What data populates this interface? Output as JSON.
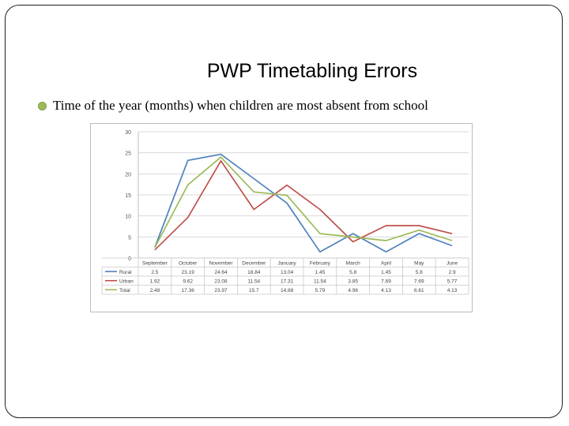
{
  "slide": {
    "title": "PWP Timetabling Errors",
    "bullet": "Time of the year (months) when children are most absent from school"
  },
  "chart_data": {
    "type": "line",
    "title": "",
    "xlabel": "",
    "ylabel": "",
    "ylim": [
      0,
      30
    ],
    "yticks": [
      0,
      5,
      10,
      15,
      20,
      25,
      30
    ],
    "grid": true,
    "legend": "data-table",
    "categories": [
      "September",
      "October",
      "November",
      "December",
      "January",
      "February",
      "March",
      "April",
      "May",
      "June"
    ],
    "series": [
      {
        "name": "Rural",
        "color": "#4f81bd",
        "values": [
          2.5,
          23.19,
          24.64,
          18.84,
          13.04,
          1.45,
          5.8,
          1.45,
          5.8,
          2.9
        ],
        "labels": [
          "2.5",
          "23.19",
          "24.64",
          "18.84",
          "13.04",
          "1.45",
          "5.8",
          "1.45",
          "5.8",
          "2.9"
        ]
      },
      {
        "name": "Urban",
        "color": "#c0504d",
        "values": [
          1.92,
          9.62,
          23.08,
          11.54,
          17.31,
          11.54,
          3.85,
          7.69,
          7.69,
          5.77
        ],
        "labels": [
          "1.92",
          "9.62",
          "23.08",
          "11.54",
          "17.31",
          "11.54",
          "3.85",
          "7.69",
          "7.69",
          "5.77"
        ]
      },
      {
        "name": "Total",
        "color": "#9bbb59",
        "values": [
          2.48,
          17.36,
          23.97,
          15.7,
          14.88,
          5.79,
          4.96,
          4.13,
          6.61,
          4.13
        ],
        "labels": [
          "2.48",
          "17.36",
          "23.97",
          "15.7",
          "14.88",
          "5.79",
          "4.96",
          "4.13",
          "6.61",
          "4.13"
        ]
      }
    ]
  }
}
